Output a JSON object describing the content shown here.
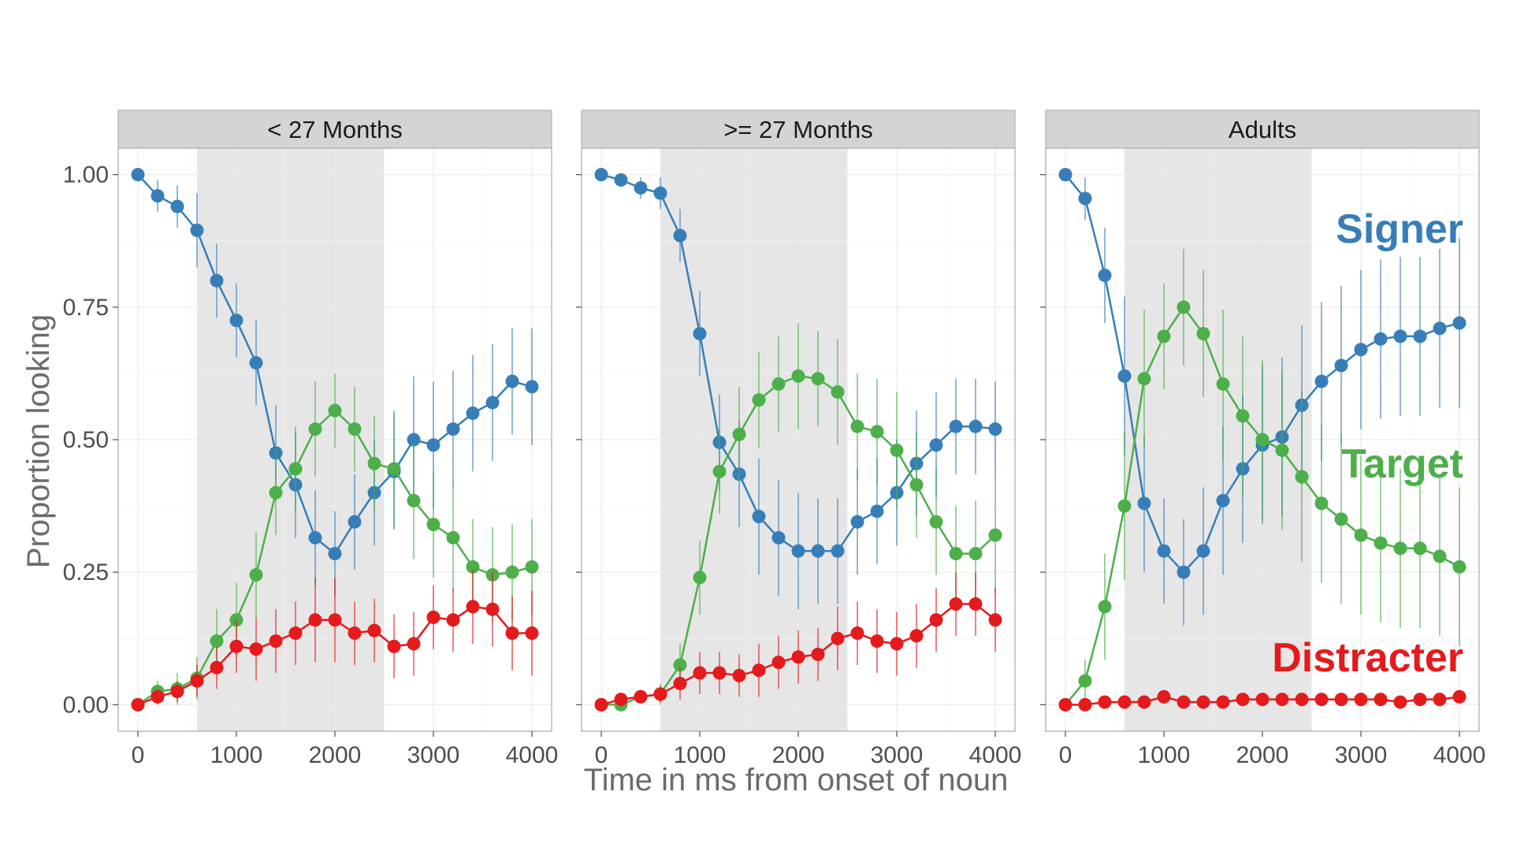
{
  "chart_data": {
    "type": "line",
    "xlabel": "Time in ms from onset of noun",
    "ylabel": "Proportion looking",
    "xlim": [
      -200,
      4200
    ],
    "ylim": [
      -0.05,
      1.05
    ],
    "x_ticks": [
      0,
      1000,
      2000,
      3000,
      4000
    ],
    "y_ticks": [
      0,
      0.25,
      0.5,
      0.75,
      1
    ],
    "y_tick_labels": [
      "0.00",
      "0.25",
      "0.50",
      "0.75",
      "1.00"
    ],
    "shaded_region": [
      600,
      2500
    ],
    "grid": true,
    "x": [
      0,
      200,
      400,
      600,
      800,
      1000,
      1200,
      1400,
      1600,
      1800,
      2000,
      2200,
      2400,
      2600,
      2800,
      3000,
      3200,
      3400,
      3600,
      3800,
      4000
    ],
    "series_colors": {
      "Signer": "#377eb8",
      "Target": "#4daf4a",
      "Distracter": "#e41a1c"
    },
    "series_labels": [
      {
        "text": "Signer",
        "color": "#377eb8"
      },
      {
        "text": "Target",
        "color": "#4daf4a"
      },
      {
        "text": "Distracter",
        "color": "#e41a1c"
      }
    ],
    "panels": [
      {
        "title": "< 27 Months",
        "series": [
          {
            "key": "Signer",
            "values": [
              1.0,
              0.96,
              0.94,
              0.895,
              0.8,
              0.725,
              0.645,
              0.475,
              0.415,
              0.315,
              0.285,
              0.345,
              0.4,
              0.44,
              0.5,
              0.49,
              0.52,
              0.55,
              0.57,
              0.61,
              0.6
            ],
            "err": [
              0.0,
              0.03,
              0.04,
              0.07,
              0.07,
              0.07,
              0.08,
              0.09,
              0.1,
              0.09,
              0.08,
              0.09,
              0.1,
              0.11,
              0.12,
              0.12,
              0.11,
              0.11,
              0.11,
              0.1,
              0.11
            ]
          },
          {
            "key": "Target",
            "values": [
              0.0,
              0.025,
              0.03,
              0.05,
              0.12,
              0.16,
              0.245,
              0.4,
              0.445,
              0.52,
              0.555,
              0.52,
              0.455,
              0.445,
              0.385,
              0.34,
              0.315,
              0.26,
              0.245,
              0.25,
              0.26
            ],
            "err": [
              0.0,
              0.02,
              0.03,
              0.04,
              0.06,
              0.07,
              0.08,
              0.08,
              0.08,
              0.09,
              0.07,
              0.08,
              0.09,
              0.11,
              0.11,
              0.1,
              0.1,
              0.09,
              0.09,
              0.09,
              0.09
            ]
          },
          {
            "key": "Distracter",
            "values": [
              0.0,
              0.015,
              0.025,
              0.045,
              0.07,
              0.11,
              0.105,
              0.12,
              0.135,
              0.16,
              0.16,
              0.135,
              0.14,
              0.11,
              0.115,
              0.165,
              0.16,
              0.185,
              0.18,
              0.135,
              0.135
            ],
            "err": [
              0.0,
              0.015,
              0.02,
              0.03,
              0.04,
              0.05,
              0.06,
              0.06,
              0.06,
              0.08,
              0.08,
              0.06,
              0.06,
              0.06,
              0.06,
              0.06,
              0.06,
              0.07,
              0.07,
              0.07,
              0.08
            ]
          }
        ]
      },
      {
        "title": ">= 27 Months",
        "series": [
          {
            "key": "Signer",
            "values": [
              1.0,
              0.99,
              0.975,
              0.965,
              0.885,
              0.7,
              0.495,
              0.435,
              0.355,
              0.315,
              0.29,
              0.29,
              0.29,
              0.345,
              0.365,
              0.4,
              0.455,
              0.49,
              0.525,
              0.525,
              0.52
            ],
            "err": [
              0.0,
              0.01,
              0.02,
              0.03,
              0.05,
              0.08,
              0.09,
              0.1,
              0.11,
              0.11,
              0.11,
              0.1,
              0.1,
              0.1,
              0.1,
              0.1,
              0.1,
              0.1,
              0.09,
              0.09,
              0.09
            ]
          },
          {
            "key": "Target",
            "values": [
              0.0,
              0.0,
              0.015,
              0.02,
              0.075,
              0.24,
              0.44,
              0.51,
              0.575,
              0.605,
              0.62,
              0.615,
              0.59,
              0.525,
              0.515,
              0.48,
              0.415,
              0.345,
              0.285,
              0.285,
              0.32
            ],
            "err": [
              0.0,
              0.005,
              0.01,
              0.02,
              0.04,
              0.07,
              0.08,
              0.09,
              0.09,
              0.09,
              0.1,
              0.09,
              0.1,
              0.1,
              0.1,
              0.11,
              0.1,
              0.1,
              0.09,
              0.1,
              0.11
            ]
          },
          {
            "key": "Distracter",
            "values": [
              0.0,
              0.01,
              0.015,
              0.02,
              0.04,
              0.06,
              0.06,
              0.055,
              0.065,
              0.08,
              0.09,
              0.095,
              0.125,
              0.135,
              0.12,
              0.115,
              0.13,
              0.16,
              0.19,
              0.19,
              0.16
            ],
            "err": [
              0.0,
              0.01,
              0.01,
              0.015,
              0.03,
              0.04,
              0.04,
              0.04,
              0.05,
              0.05,
              0.05,
              0.05,
              0.06,
              0.06,
              0.06,
              0.06,
              0.06,
              0.06,
              0.06,
              0.06,
              0.06
            ]
          }
        ]
      },
      {
        "title": "Adults",
        "series": [
          {
            "key": "Signer",
            "values": [
              1.0,
              0.955,
              0.81,
              0.62,
              0.38,
              0.29,
              0.25,
              0.29,
              0.385,
              0.445,
              0.49,
              0.505,
              0.565,
              0.61,
              0.64,
              0.67,
              0.69,
              0.695,
              0.695,
              0.71,
              0.72
            ],
            "err": [
              0.0,
              0.04,
              0.09,
              0.15,
              0.13,
              0.1,
              0.1,
              0.12,
              0.14,
              0.14,
              0.15,
              0.15,
              0.15,
              0.15,
              0.15,
              0.15,
              0.15,
              0.15,
              0.15,
              0.15,
              0.16
            ]
          },
          {
            "key": "Target",
            "values": [
              0.0,
              0.045,
              0.185,
              0.375,
              0.615,
              0.695,
              0.75,
              0.7,
              0.605,
              0.545,
              0.5,
              0.48,
              0.43,
              0.38,
              0.35,
              0.32,
              0.305,
              0.295,
              0.295,
              0.28,
              0.26
            ],
            "err": [
              0.0,
              0.04,
              0.1,
              0.14,
              0.13,
              0.1,
              0.11,
              0.12,
              0.14,
              0.15,
              0.15,
              0.15,
              0.16,
              0.15,
              0.16,
              0.15,
              0.15,
              0.15,
              0.15,
              0.15,
              0.15
            ]
          },
          {
            "key": "Distracter",
            "values": [
              0.0,
              0.0,
              0.005,
              0.005,
              0.005,
              0.015,
              0.005,
              0.005,
              0.005,
              0.01,
              0.01,
              0.01,
              0.01,
              0.01,
              0.01,
              0.01,
              0.01,
              0.005,
              0.01,
              0.01,
              0.015
            ],
            "err": [
              0.0,
              0.0,
              0.005,
              0.005,
              0.005,
              0.01,
              0.005,
              0.005,
              0.005,
              0.005,
              0.005,
              0.005,
              0.005,
              0.005,
              0.005,
              0.005,
              0.005,
              0.005,
              0.005,
              0.005,
              0.01
            ]
          }
        ]
      }
    ]
  }
}
